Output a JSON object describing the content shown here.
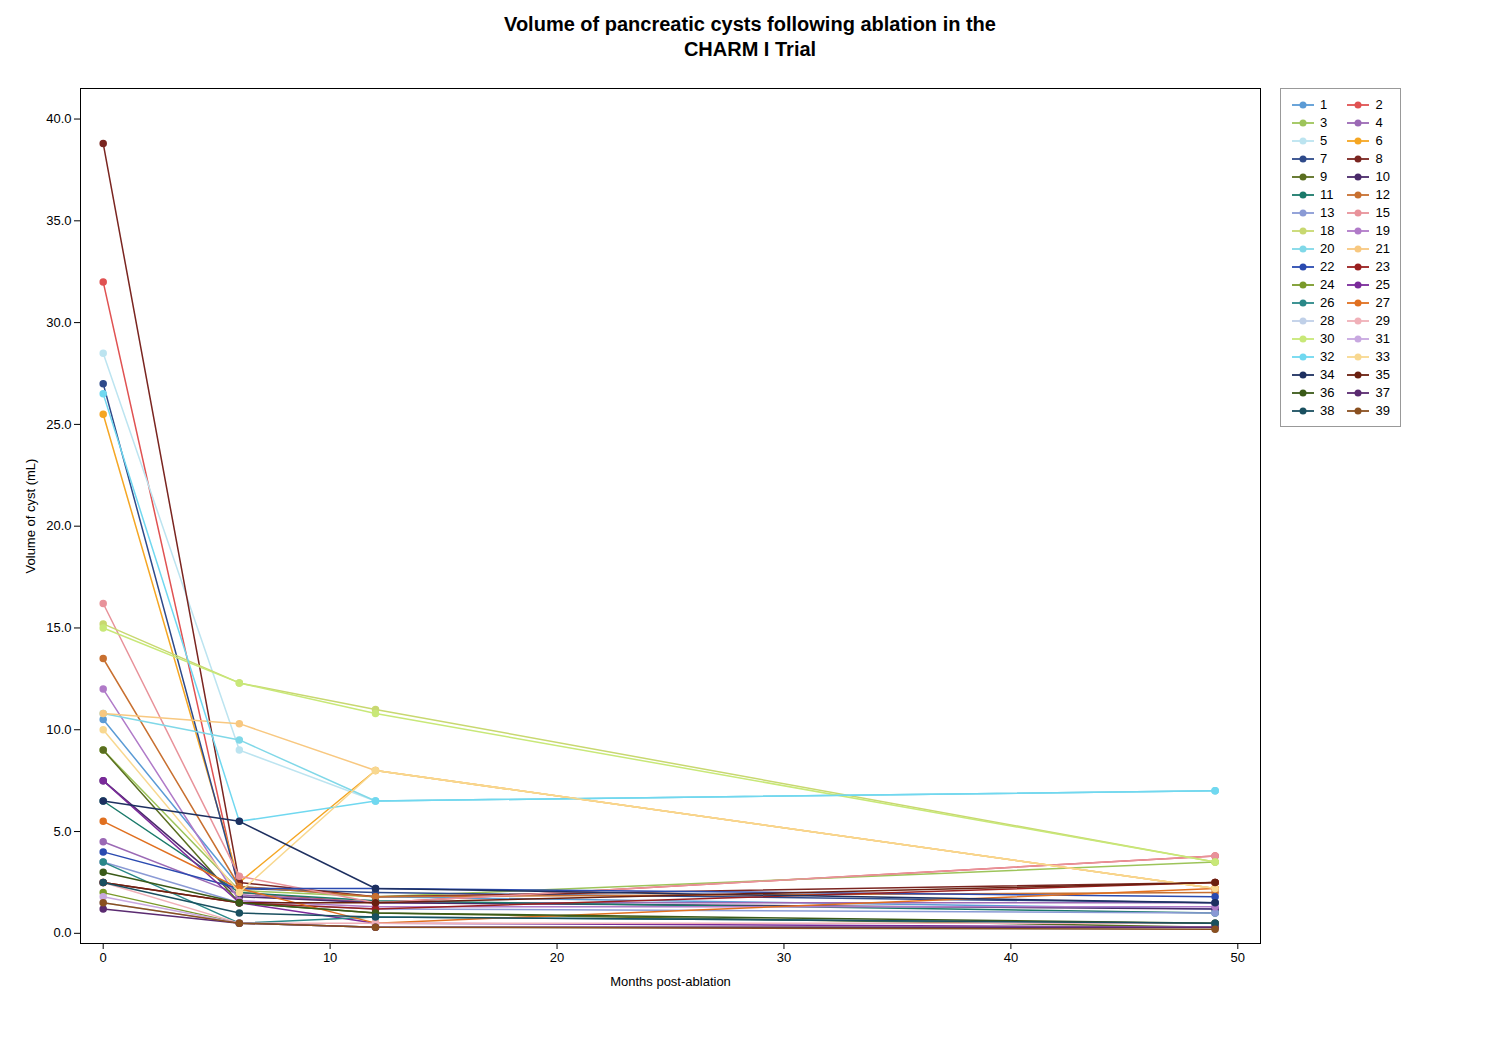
{
  "chart_data": {
    "type": "line",
    "title": "Volume of pancreatic cysts following ablation in the\nCHARM I Trial",
    "xlabel": "Months post-ablation",
    "ylabel": "Volume of cyst (mL)",
    "xlim": [
      -1.0,
      51.0
    ],
    "ylim": [
      -0.5,
      41.5
    ],
    "xticks": [
      0,
      10,
      20,
      30,
      40,
      50
    ],
    "yticks": [
      {
        "value": 0.0,
        "label": "0.0"
      },
      {
        "value": 5.0,
        "label": "5.0"
      },
      {
        "value": 10.0,
        "label": "10.0"
      },
      {
        "value": 15.0,
        "label": "15.0"
      },
      {
        "value": 20.0,
        "label": "20.0"
      },
      {
        "value": 25.0,
        "label": "25.0"
      },
      {
        "value": 30.0,
        "label": "30.0"
      },
      {
        "value": 35.0,
        "label": "35.0"
      },
      {
        "value": 40.0,
        "label": "40.0"
      }
    ],
    "legend": "upper right",
    "marker": "circle",
    "line_style": "solid",
    "x": [
      0,
      6,
      12,
      49
    ],
    "series": [
      {
        "name": "1",
        "color": "#5b9bd5",
        "values": [
          10.5,
          2.3,
          1.8,
          1.2
        ]
      },
      {
        "name": "2",
        "color": "#e05252",
        "values": [
          32.0,
          2.0,
          1.5,
          3.8
        ]
      },
      {
        "name": "3",
        "color": "#9dc45a",
        "values": [
          9.0,
          2.1,
          1.8,
          3.5
        ]
      },
      {
        "name": "4",
        "color": "#9b69b5",
        "values": [
          4.5,
          1.9,
          1.5,
          1.5
        ]
      },
      {
        "name": "5",
        "color": "#bce4f0",
        "values": [
          28.5,
          9.0,
          6.5,
          7.0
        ]
      },
      {
        "name": "6",
        "color": "#f5a623",
        "values": [
          25.5,
          2.5,
          8.0,
          2.2
        ]
      },
      {
        "name": "7",
        "color": "#2e4a8a",
        "values": [
          27.0,
          2.2,
          2.0,
          1.5
        ]
      },
      {
        "name": "8",
        "color": "#7a2520",
        "values": [
          38.8,
          2.5,
          1.8,
          2.5
        ]
      },
      {
        "name": "9",
        "color": "#5a6e20",
        "values": [
          9.0,
          1.5,
          1.0,
          0.3
        ]
      },
      {
        "name": "10",
        "color": "#4a2a6a",
        "values": [
          7.5,
          1.8,
          1.5,
          1.2
        ]
      },
      {
        "name": "11",
        "color": "#1a7a6a",
        "values": [
          6.5,
          2.0,
          1.6,
          1.0
        ]
      },
      {
        "name": "12",
        "color": "#c87030",
        "values": [
          13.5,
          2.3,
          1.8,
          2.0
        ]
      },
      {
        "name": "13",
        "color": "#8a9ad5",
        "values": [
          3.5,
          1.5,
          1.2,
          1.0
        ]
      },
      {
        "name": "15",
        "color": "#e8929a",
        "values": [
          16.2,
          2.8,
          1.5,
          3.8
        ]
      },
      {
        "name": "18",
        "color": "#c8d870",
        "values": [
          15.2,
          12.3,
          11.0,
          3.5
        ]
      },
      {
        "name": "19",
        "color": "#b07ac8",
        "values": [
          12.0,
          1.6,
          1.3,
          1.3
        ]
      },
      {
        "name": "20",
        "color": "#80d8e8",
        "values": [
          10.8,
          9.5,
          6.5,
          7.0
        ]
      },
      {
        "name": "21",
        "color": "#f8c880",
        "values": [
          10.8,
          10.3,
          8.0,
          2.2
        ]
      },
      {
        "name": "22",
        "color": "#2a4ab0",
        "values": [
          4.0,
          2.2,
          2.2,
          1.8
        ]
      },
      {
        "name": "23",
        "color": "#9a2020",
        "values": [
          2.5,
          1.5,
          1.2,
          2.5
        ]
      },
      {
        "name": "24",
        "color": "#7a9a2a",
        "values": [
          2.0,
          0.5,
          0.3,
          0.3
        ]
      },
      {
        "name": "25",
        "color": "#7a2a9a",
        "values": [
          7.5,
          1.5,
          0.5,
          0.3
        ]
      },
      {
        "name": "26",
        "color": "#2a8888",
        "values": [
          3.5,
          0.5,
          0.8,
          0.5
        ]
      },
      {
        "name": "27",
        "color": "#e07020",
        "values": [
          5.5,
          2.2,
          0.5,
          2.2
        ]
      },
      {
        "name": "28",
        "color": "#c0d0e8",
        "values": [
          1.5,
          0.5,
          0.3,
          0.2
        ]
      },
      {
        "name": "29",
        "color": "#f0b0b8",
        "values": [
          2.5,
          0.5,
          0.5,
          0.5
        ]
      },
      {
        "name": "30",
        "color": "#c8e878",
        "values": [
          15.0,
          12.3,
          10.8,
          3.5
        ]
      },
      {
        "name": "31",
        "color": "#c8a8e0",
        "values": [
          1.8,
          0.5,
          0.3,
          0.3
        ]
      },
      {
        "name": "32",
        "color": "#70d8f0",
        "values": [
          26.5,
          5.5,
          6.5,
          7.0
        ]
      },
      {
        "name": "33",
        "color": "#f8d890",
        "values": [
          10.0,
          2.0,
          8.0,
          2.2
        ]
      },
      {
        "name": "34",
        "color": "#1e3060",
        "values": [
          6.5,
          5.5,
          2.2,
          1.5
        ]
      },
      {
        "name": "35",
        "color": "#6a2010",
        "values": [
          2.5,
          1.5,
          1.5,
          2.5
        ]
      },
      {
        "name": "36",
        "color": "#3a5a18",
        "values": [
          3.0,
          1.5,
          1.0,
          0.5
        ]
      },
      {
        "name": "37",
        "color": "#5a2a70",
        "values": [
          1.2,
          0.5,
          0.3,
          0.3
        ]
      },
      {
        "name": "38",
        "color": "#1a5060",
        "values": [
          2.5,
          1.0,
          0.8,
          0.5
        ]
      },
      {
        "name": "39",
        "color": "#8a5020",
        "values": [
          1.5,
          0.5,
          0.3,
          0.2
        ]
      }
    ]
  }
}
